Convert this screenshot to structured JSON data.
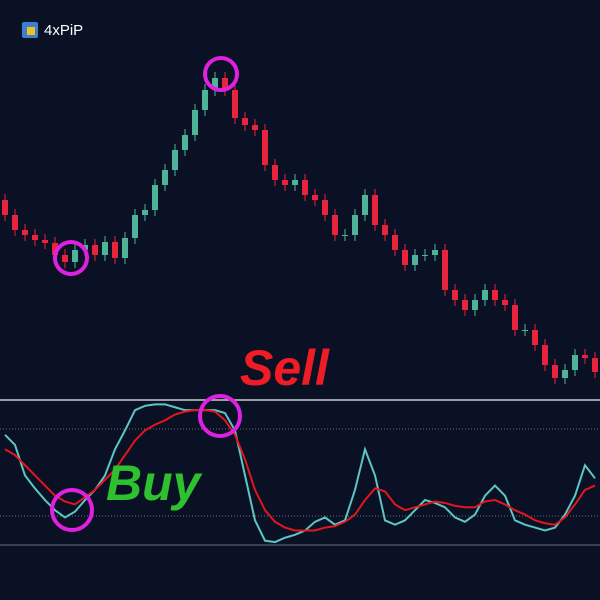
{
  "brand": "4xPiP",
  "chart_data": [
    {
      "type": "candlestick",
      "up_color": "#4fb39a",
      "down_color": "#e8243c",
      "ylim": [
        0,
        400
      ],
      "open": [
        200,
        185,
        170,
        165,
        160,
        157,
        145,
        138,
        150,
        155,
        145,
        158,
        142,
        162,
        185,
        190,
        215,
        230,
        250,
        265,
        290,
        310,
        322,
        310,
        282,
        275,
        270,
        235,
        220,
        215,
        220,
        205,
        200,
        185,
        165,
        165,
        185,
        205,
        175,
        165,
        150,
        135,
        145,
        145,
        150,
        110,
        100,
        90,
        100,
        110,
        100,
        95,
        70,
        70,
        55,
        35,
        22,
        30,
        45,
        42
      ],
      "high": [
        206,
        191,
        176,
        171,
        166,
        163,
        151,
        156,
        161,
        161,
        164,
        164,
        168,
        191,
        196,
        221,
        236,
        256,
        271,
        296,
        316,
        328,
        328,
        316,
        288,
        281,
        276,
        241,
        226,
        226,
        226,
        211,
        206,
        191,
        171,
        191,
        211,
        211,
        181,
        171,
        156,
        151,
        151,
        156,
        156,
        116,
        106,
        106,
        116,
        116,
        106,
        101,
        76,
        76,
        61,
        41,
        36,
        51,
        51,
        48
      ],
      "low": [
        179,
        164,
        159,
        154,
        151,
        139,
        132,
        132,
        144,
        139,
        139,
        136,
        136,
        156,
        179,
        184,
        209,
        224,
        244,
        259,
        284,
        304,
        304,
        276,
        269,
        264,
        229,
        214,
        209,
        209,
        199,
        194,
        179,
        159,
        159,
        159,
        179,
        169,
        159,
        144,
        129,
        129,
        139,
        139,
        104,
        94,
        84,
        84,
        94,
        94,
        89,
        64,
        64,
        49,
        29,
        16,
        16,
        24,
        36,
        22
      ],
      "close": [
        185,
        170,
        165,
        160,
        157,
        145,
        138,
        150,
        155,
        145,
        158,
        142,
        162,
        185,
        190,
        215,
        230,
        250,
        265,
        290,
        310,
        322,
        310,
        282,
        275,
        270,
        235,
        220,
        215,
        220,
        205,
        200,
        185,
        165,
        165,
        185,
        205,
        175,
        165,
        150,
        135,
        145,
        145,
        150,
        110,
        100,
        90,
        100,
        110,
        100,
        95,
        70,
        70,
        55,
        35,
        22,
        30,
        45,
        42,
        28
      ]
    },
    {
      "type": "line",
      "ylim": [
        0,
        100
      ],
      "levels": [
        20,
        80
      ],
      "annotations": [
        "Sell",
        "Buy"
      ],
      "series": [
        {
          "color": "#5cc6c6",
          "values": [
            76,
            69,
            48,
            39,
            31,
            24,
            19,
            23,
            31,
            38,
            48,
            66,
            79,
            93,
            96,
            97,
            97,
            95,
            93,
            93,
            93,
            93,
            91,
            79,
            48,
            17,
            3,
            2,
            5,
            7,
            10,
            16,
            19,
            14,
            17,
            38,
            66,
            48,
            17,
            14,
            17,
            24,
            31,
            29,
            26,
            19,
            16,
            21,
            34,
            41,
            34,
            17,
            14,
            12,
            10,
            12,
            21,
            34,
            55,
            46
          ]
        },
        {
          "color": "#e3161f",
          "values": [
            66,
            62,
            55,
            48,
            41,
            34,
            30,
            28,
            33,
            38,
            45,
            52,
            62,
            72,
            79,
            83,
            86,
            90,
            92,
            93,
            93,
            92,
            86,
            76,
            59,
            38,
            24,
            16,
            12,
            10,
            10,
            10,
            12,
            13,
            16,
            21,
            31,
            39,
            37,
            28,
            24,
            26,
            28,
            30,
            29,
            27,
            26,
            26,
            30,
            31,
            28,
            24,
            21,
            17,
            15,
            14,
            19,
            28,
            38,
            41
          ]
        }
      ]
    }
  ]
}
